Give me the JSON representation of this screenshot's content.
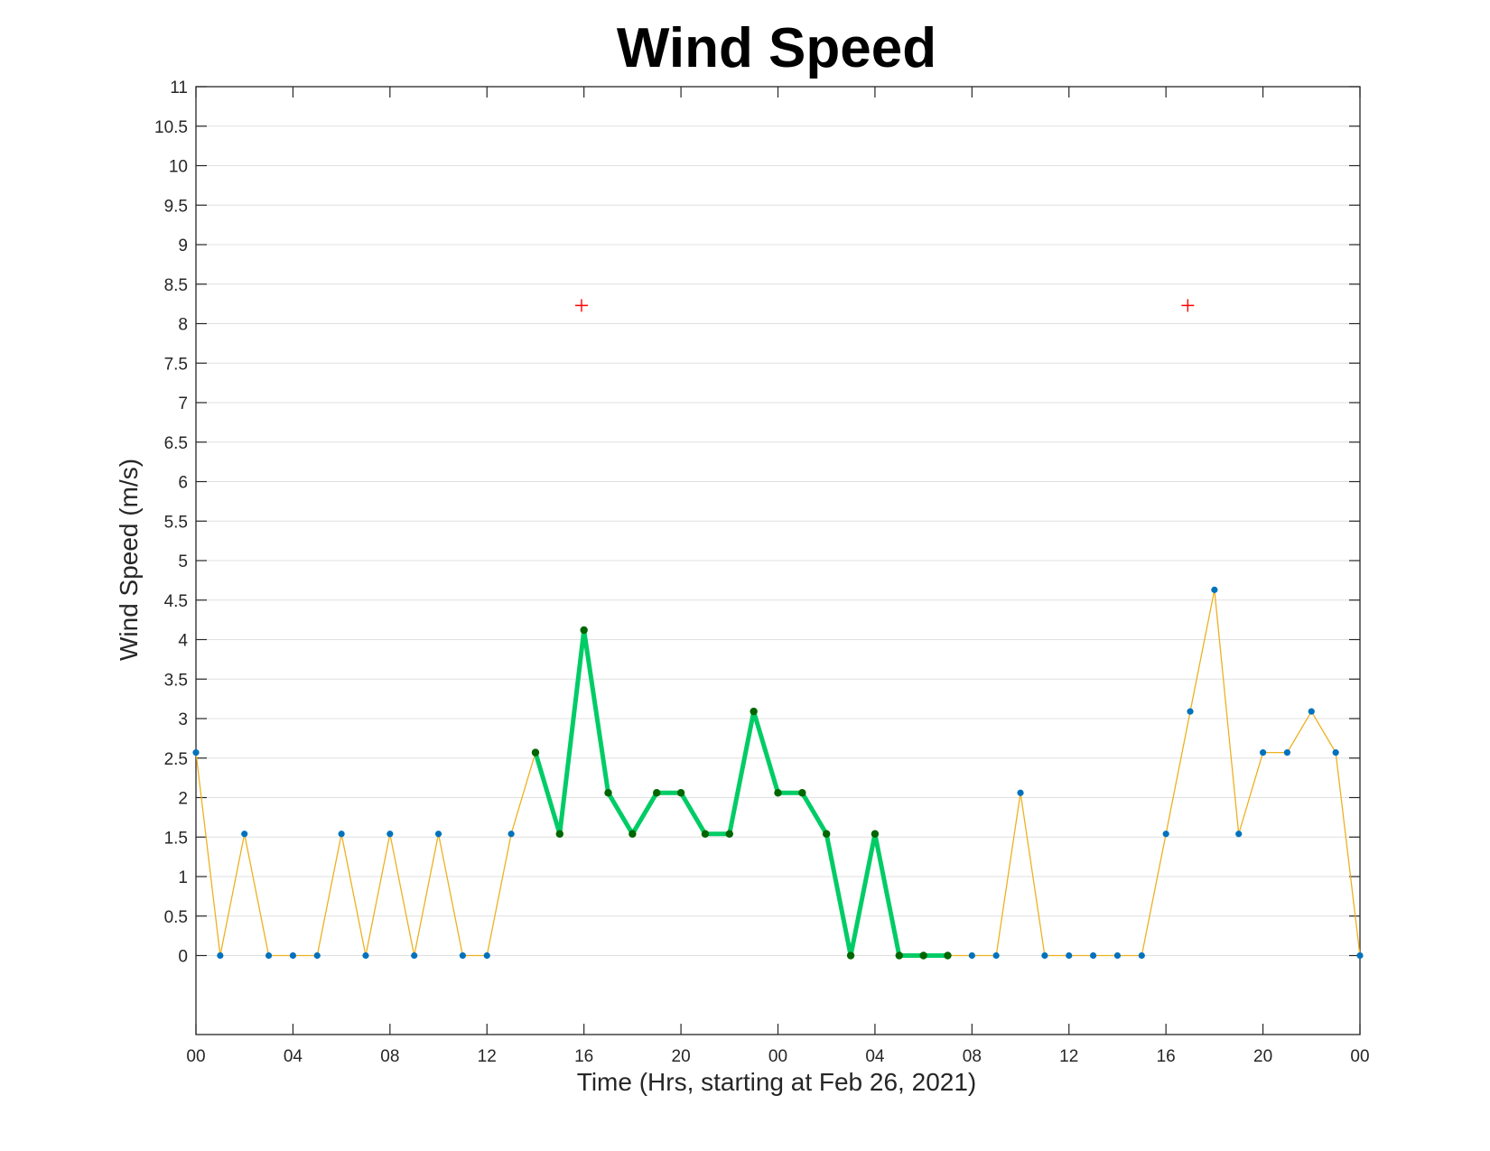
{
  "chart_data": {
    "type": "line",
    "title": "Wind Speed",
    "xlabel": "Time (Hrs, starting at Feb 26, 2021)",
    "ylabel": "Wind Speed (m/s)",
    "x_unit": "hours",
    "xlim": [
      0,
      48
    ],
    "ylim": [
      -1,
      11
    ],
    "ytick_values": [
      0,
      0.5,
      1,
      1.5,
      2,
      2.5,
      3,
      3.5,
      4,
      4.5,
      5,
      5.5,
      6,
      6.5,
      7,
      7.5,
      8,
      8.5,
      9,
      9.5,
      10,
      10.5,
      11
    ],
    "ytick_labels": [
      "0",
      "0.5",
      "1",
      "1.5",
      "2",
      "2.5",
      "3",
      "3.5",
      "4",
      "4.5",
      "5",
      "5.5",
      "6",
      "6.5",
      "7",
      "7.5",
      "8",
      "8.5",
      "9",
      "9.5",
      "10",
      "10.5",
      "11"
    ],
    "xtick_values": [
      0,
      4,
      8,
      12,
      16,
      20,
      24,
      28,
      32,
      36,
      40,
      44,
      48
    ],
    "xtick_labels": [
      "00",
      "04",
      "08",
      "12",
      "16",
      "20",
      "00",
      "04",
      "08",
      "12",
      "16",
      "20",
      "00"
    ],
    "grid": "horizontal",
    "series": [
      {
        "style": "thin-line-with-dots",
        "color": "#EDB120",
        "marker_color": "#0072BD",
        "x": [
          0,
          1,
          2,
          3,
          4,
          5,
          6,
          7,
          8,
          9,
          10,
          11,
          12,
          13,
          14,
          15,
          16,
          17,
          18,
          19,
          20,
          21,
          22,
          23,
          24,
          25,
          26,
          27,
          28,
          29,
          30,
          31,
          32,
          33,
          34,
          35,
          36,
          37,
          38,
          39,
          40,
          41,
          42,
          43,
          44,
          45,
          46,
          47,
          48
        ],
        "y": [
          2.57,
          0,
          1.54,
          0,
          0,
          0,
          1.54,
          0,
          1.54,
          0,
          1.54,
          0,
          0,
          1.54,
          2.57,
          1.54,
          4.12,
          2.06,
          1.54,
          2.06,
          2.06,
          1.54,
          1.54,
          3.09,
          2.06,
          2.06,
          1.54,
          0,
          1.54,
          0,
          0,
          0,
          0,
          0,
          2.06,
          0,
          0,
          0,
          0,
          0,
          1.54,
          3.09,
          4.63,
          1.54,
          2.57,
          2.57,
          3.09,
          2.57,
          0
        ]
      },
      {
        "style": "thick-highlight",
        "color": "#00CC66",
        "marker_color": "#006600",
        "x": [
          14,
          15,
          16,
          17,
          18,
          19,
          20,
          21,
          22,
          23,
          24,
          25,
          26,
          27,
          28,
          29,
          30,
          31
        ],
        "y": [
          2.57,
          1.54,
          4.12,
          2.06,
          1.54,
          2.06,
          2.06,
          1.54,
          1.54,
          3.09,
          2.06,
          2.06,
          1.54,
          0,
          1.54,
          0,
          0,
          0
        ]
      },
      {
        "style": "plus-markers",
        "color": "#FF0000",
        "x": [
          15.9,
          40.9
        ],
        "y": [
          8.23,
          8.23
        ]
      }
    ]
  }
}
